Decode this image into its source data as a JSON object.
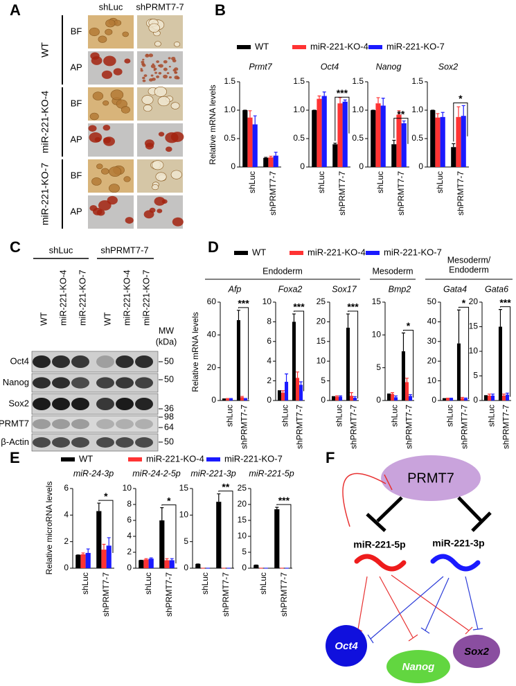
{
  "panel_a": {
    "label": "A",
    "columns": [
      "shLuc",
      "shPRMT7-7"
    ],
    "groups": [
      "WT",
      "miR-221-KO-4",
      "miR-221-KO-7"
    ],
    "rows": [
      "BF",
      "AP"
    ]
  },
  "panel_c": {
    "label": "C",
    "conditions": [
      "shLuc",
      "shPRMT7-7"
    ],
    "lanes": [
      "WT",
      "miR-221-KO-4",
      "miR-221-KO-7"
    ],
    "mw_header": [
      "MW",
      "(kDa)"
    ],
    "proteins": [
      "Oct4",
      "Nanog",
      "Sox2",
      "PRMT7",
      "β-Actin"
    ],
    "markers": [
      50,
      50,
      36,
      98,
      64,
      50
    ]
  },
  "panel_f": {
    "label": "F",
    "nodes": [
      "PRMT7",
      "miR-221-5p",
      "miR-221-3p",
      "Oct4",
      "Nanog",
      "Sox2"
    ]
  },
  "chart_data": [
    {
      "type": "bar",
      "panel": "B",
      "ylabel": "Relative mRNA levels",
      "categories": [
        "shLuc",
        "shPRMT7-7"
      ],
      "series": [
        {
          "name": "WT",
          "color": "#000000"
        },
        {
          "name": "miR-221-KO-4",
          "color": "#ff3333"
        },
        {
          "name": "miR-221-KO-7",
          "color": "#1a1aff"
        }
      ],
      "subplots": [
        {
          "title": "Prmt7",
          "ylim": [
            0,
            1.5
          ],
          "yticks": [
            0,
            0.5,
            {
              "value": 1,
              "label": "1.0"
            },
            1.5
          ],
          "values": [
            [
              1.0,
              0.16
            ],
            [
              0.87,
              0.17
            ],
            [
              0.75,
              0.2
            ]
          ],
          "errors": [
            [
              0,
              0.01
            ],
            [
              0.12,
              0.02
            ],
            [
              0.15,
              0.06
            ]
          ]
        },
        {
          "title": "Oct4",
          "ylim": [
            0,
            1.5
          ],
          "yticks": [
            0,
            0.5,
            {
              "value": 1,
              "label": "1.0"
            },
            1.5
          ],
          "values": [
            [
              1.0,
              0.4
            ],
            [
              1.2,
              1.12
            ],
            [
              1.25,
              1.15
            ]
          ],
          "errors": [
            [
              0,
              0.02
            ],
            [
              0.05,
              0.1
            ],
            [
              0.07,
              0.03
            ]
          ],
          "significance": "***"
        },
        {
          "title": "Nanog",
          "ylim": [
            0,
            1.5
          ],
          "yticks": [
            0,
            0.5,
            {
              "value": 1,
              "label": "1.0"
            },
            1.5
          ],
          "values": [
            [
              1.0,
              0.4
            ],
            [
              1.12,
              0.92
            ],
            [
              1.08,
              0.77
            ]
          ],
          "errors": [
            [
              0,
              0.07
            ],
            [
              0.1,
              0.07
            ],
            [
              0.13,
              0.04
            ]
          ],
          "significance": "**"
        },
        {
          "title": "Sox2",
          "ylim": [
            0,
            1.5
          ],
          "yticks": [
            0,
            0.5,
            {
              "value": 1,
              "label": "1.0"
            },
            1.5
          ],
          "values": [
            [
              1.0,
              0.35
            ],
            [
              0.87,
              0.88
            ],
            [
              0.88,
              0.9
            ]
          ],
          "errors": [
            [
              0,
              0.06
            ],
            [
              0.07,
              0.18
            ],
            [
              0.08,
              0.18
            ]
          ],
          "significance": "*"
        }
      ]
    },
    {
      "type": "bar",
      "panel": "D",
      "ylabel": "Relative mRNA levels",
      "categories": [
        "shLuc",
        "shPRMT7-7"
      ],
      "series": [
        {
          "name": "WT",
          "color": "#000000"
        },
        {
          "name": "miR-221-KO-4",
          "color": "#ff3333"
        },
        {
          "name": "miR-221-KO-7",
          "color": "#1a1aff"
        }
      ],
      "groups": [
        [
          "Endoderm"
        ],
        [
          "Mesoderm"
        ],
        [
          "Mesoderm/",
          "Endoderm"
        ]
      ],
      "subplots": [
        {
          "title": "Afp",
          "ylim": [
            0,
            60
          ],
          "yticks": [
            0,
            20,
            40,
            60
          ],
          "values": [
            [
              1,
              49
            ],
            [
              1,
              2
            ],
            [
              1,
              1
            ]
          ],
          "errors": [
            [
              0,
              6
            ],
            [
              0.2,
              0.5
            ],
            [
              0.2,
              0.3
            ]
          ],
          "significance": "***"
        },
        {
          "title": "Foxa2",
          "ylim": [
            0,
            10
          ],
          "yticks": [
            0,
            2,
            4,
            6,
            8,
            10
          ],
          "values": [
            [
              1,
              8
            ],
            [
              0.8,
              2.3
            ],
            [
              1.9,
              1.6
            ]
          ],
          "errors": [
            [
              0,
              0.8
            ],
            [
              0.2,
              0.6
            ],
            [
              0.8,
              0.3
            ]
          ],
          "significance": "***"
        },
        {
          "title": "Sox17",
          "ylim": [
            0,
            25
          ],
          "yticks": [
            0,
            5,
            10,
            15,
            20,
            25
          ],
          "values": [
            [
              1,
              18.5
            ],
            [
              1,
              1.2
            ],
            [
              1,
              0.7
            ]
          ],
          "errors": [
            [
              0,
              3.5
            ],
            [
              0.2,
              0.8
            ],
            [
              0.2,
              0.3
            ]
          ],
          "significance": "***"
        },
        {
          "title": "Bmp2",
          "ylim": [
            0,
            15
          ],
          "yticks": [
            0,
            5,
            10,
            15
          ],
          "values": [
            [
              1,
              7.5
            ],
            [
              1,
              2.8
            ],
            [
              0.5,
              0.7
            ]
          ],
          "errors": [
            [
              0,
              2.8
            ],
            [
              0.2,
              0.6
            ],
            [
              0.2,
              0.2
            ]
          ],
          "significance": "*"
        },
        {
          "title": "Gata4",
          "ylim": [
            0,
            50
          ],
          "yticks": [
            0,
            10,
            20,
            30,
            40,
            50
          ],
          "values": [
            [
              1,
              29
            ],
            [
              1,
              1.2
            ],
            [
              1,
              1
            ]
          ],
          "errors": [
            [
              0,
              17
            ],
            [
              0.2,
              0.4
            ],
            [
              0.2,
              0.3
            ]
          ],
          "significance": "*"
        },
        {
          "title": "Gata6",
          "ylim": [
            0,
            20
          ],
          "yticks": [
            0,
            5,
            10,
            15,
            20
          ],
          "values": [
            [
              1,
              15
            ],
            [
              1,
              1
            ],
            [
              1,
              1.2
            ]
          ],
          "errors": [
            [
              0,
              3.5
            ],
            [
              0.3,
              0.3
            ],
            [
              0.3,
              0.3
            ]
          ],
          "significance": "***"
        }
      ]
    },
    {
      "type": "bar",
      "panel": "E",
      "ylabel": "Relative microRNA levels",
      "categories": [
        "shLuc",
        "shPRMT7-7"
      ],
      "series": [
        {
          "name": "WT",
          "color": "#000000"
        },
        {
          "name": "miR-221-KO-4",
          "color": "#ff3333"
        },
        {
          "name": "miR-221-KO-7",
          "color": "#1a1aff"
        }
      ],
      "subplots": [
        {
          "title": "miR-24-3p",
          "ylim": [
            0,
            6
          ],
          "yticks": [
            0,
            2,
            4,
            6
          ],
          "values": [
            [
              1,
              4.3
            ],
            [
              1.05,
              1.4
            ],
            [
              1.15,
              1.7
            ]
          ],
          "errors": [
            [
              0,
              0.6
            ],
            [
              0.1,
              0.4
            ],
            [
              0.3,
              0.6
            ]
          ],
          "significance": "*"
        },
        {
          "title": "miR-24-2-5p",
          "ylim": [
            0,
            10
          ],
          "yticks": [
            0,
            2,
            4,
            6,
            8,
            10
          ],
          "values": [
            [
              1,
              6
            ],
            [
              1.1,
              1
            ],
            [
              1.2,
              1
            ]
          ],
          "errors": [
            [
              0,
              1.6
            ],
            [
              0.1,
              0.2
            ],
            [
              0.1,
              0.2
            ]
          ],
          "significance": "*"
        },
        {
          "title": "miR-221-3p",
          "ylim": [
            0,
            15
          ],
          "yticks": [
            0,
            5,
            10,
            15
          ],
          "values": [
            [
              0.8,
              12.5
            ],
            [
              0,
              0
            ],
            [
              0,
              0
            ]
          ],
          "errors": [
            [
              0,
              1.5
            ],
            [
              0,
              0
            ],
            [
              0,
              0
            ]
          ],
          "significance": "**"
        },
        {
          "title": "miR-221-5p",
          "ylim": [
            0,
            25
          ],
          "yticks": [
            0,
            5,
            10,
            15,
            20,
            25
          ],
          "values": [
            [
              1,
              18.5
            ],
            [
              0,
              0
            ],
            [
              0,
              0
            ]
          ],
          "errors": [
            [
              0,
              0.6
            ],
            [
              0,
              0
            ],
            [
              0,
              0
            ]
          ],
          "significance": "***"
        }
      ]
    }
  ]
}
